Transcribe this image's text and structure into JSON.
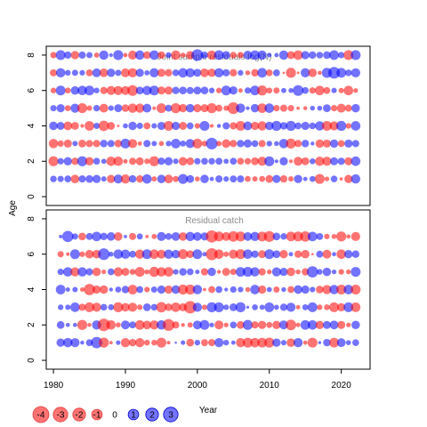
{
  "chart_data": {
    "type": "scatter",
    "subtype": "bubble-residuals",
    "ylabel": "Age",
    "xlabel": "Year",
    "xlim": [
      1979,
      2024
    ],
    "x_ticks": [
      "1980",
      "1990",
      "2000",
      "2010",
      "2020"
    ],
    "positive_color": "#0000ff",
    "negative_color": "#ff0000",
    "panels": [
      {
        "title": "Joint sample residuals log(N)",
        "ylim": [
          -0.5,
          8.5
        ],
        "y_ticks": [
          "0",
          "2",
          "4",
          "6",
          "8"
        ],
        "ages": [
          1,
          2,
          3,
          4,
          5,
          6,
          7,
          8
        ],
        "years": [
          1980,
          2022
        ]
      },
      {
        "title": "Residual catch",
        "ylim": [
          -0.5,
          8.5
        ],
        "y_ticks": [
          "0",
          "2",
          "4",
          "6",
          "8"
        ],
        "ages": [
          1,
          2,
          3,
          4,
          5,
          6,
          7
        ],
        "years": [
          1981,
          2022
        ]
      }
    ],
    "legend": {
      "position": "bottom-left",
      "values": [
        -4,
        -3,
        -2,
        -1,
        0,
        1,
        2,
        3
      ],
      "labels": [
        "-4",
        "-3",
        "-2",
        "-1",
        "0",
        "1",
        "2",
        "3"
      ]
    }
  }
}
